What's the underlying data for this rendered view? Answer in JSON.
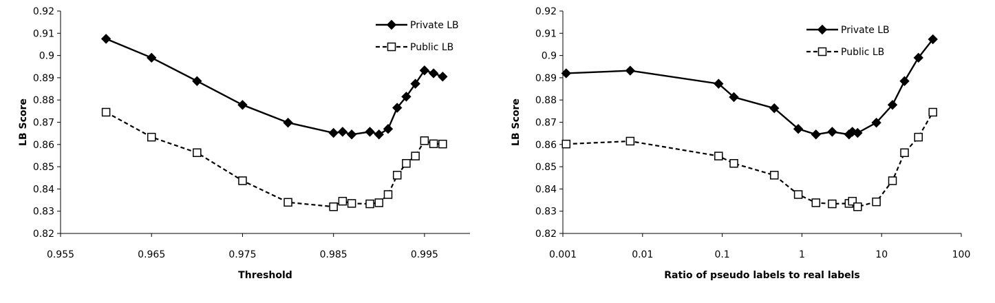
{
  "chart_data": [
    {
      "type": "line",
      "x_scale": "linear",
      "xlabel": "Threshold",
      "ylabel": "LB Score",
      "xlim": [
        0.955,
        1.0
      ],
      "ylim": [
        0.82,
        0.92
      ],
      "x_tick_values": [
        0.955,
        0.965,
        0.975,
        0.985,
        0.995
      ],
      "x_ticks": [
        "0.955",
        "0.965",
        "0.975",
        "0.985",
        "0.995"
      ],
      "y_ticks": [
        "0.82",
        "0.83",
        "0.84",
        "0.85",
        "0.86",
        "0.87",
        "0.88",
        "0.89",
        "0.9",
        "0.91",
        "0.92"
      ],
      "grid": false,
      "legend_position": "top-right",
      "series": [
        {
          "name": "Private LB",
          "marker": "diamond",
          "line_style": "solid",
          "color": "#000000",
          "x": [
            0.96,
            0.965,
            0.97,
            0.975,
            0.98,
            0.985,
            0.986,
            0.987,
            0.989,
            0.99,
            0.991,
            0.992,
            0.993,
            0.994,
            0.995,
            0.996,
            0.997
          ],
          "y": [
            0.9075,
            0.899,
            0.8885,
            0.8778,
            0.8698,
            0.8652,
            0.8657,
            0.8645,
            0.8657,
            0.8645,
            0.867,
            0.8765,
            0.8815,
            0.8873,
            0.8933,
            0.892,
            0.8905
          ]
        },
        {
          "name": "Public LB",
          "marker": "square-open",
          "line_style": "dashed",
          "color": "#000000",
          "x": [
            0.96,
            0.965,
            0.97,
            0.975,
            0.98,
            0.985,
            0.986,
            0.987,
            0.989,
            0.99,
            0.991,
            0.992,
            0.993,
            0.994,
            0.995,
            0.996,
            0.997
          ],
          "y": [
            0.8745,
            0.8633,
            0.8563,
            0.8437,
            0.834,
            0.832,
            0.8345,
            0.8335,
            0.8333,
            0.8338,
            0.8375,
            0.8462,
            0.8515,
            0.8548,
            0.8617,
            0.8603,
            0.8602
          ]
        }
      ]
    },
    {
      "type": "line",
      "x_scale": "log",
      "xlabel": "Ratio of pseudo labels to real labels",
      "ylabel": "LB Score",
      "xlim": [
        0.001,
        100
      ],
      "ylim": [
        0.82,
        0.92
      ],
      "x_tick_values": [
        0.001,
        0.01,
        0.1,
        1,
        10,
        100
      ],
      "x_ticks": [
        "0.001",
        "0.01",
        "0.1",
        "1",
        "10",
        "100"
      ],
      "y_ticks": [
        "0.82",
        "0.83",
        "0.84",
        "0.85",
        "0.86",
        "0.87",
        "0.88",
        "0.89",
        "0.9",
        "0.91",
        "0.92"
      ],
      "grid": false,
      "legend_position": "top-right",
      "series": [
        {
          "name": "Private LB",
          "marker": "diamond",
          "line_style": "solid",
          "color": "#000000",
          "x": [
            0.0011,
            0.007,
            0.09,
            0.14,
            0.45,
            0.9,
            1.5,
            2.4,
            3.9,
            4.3,
            5.0,
            8.6,
            13.7,
            19.4,
            29.0,
            44.0
          ],
          "y": [
            0.892,
            0.8932,
            0.8873,
            0.8813,
            0.8763,
            0.867,
            0.8645,
            0.8657,
            0.8645,
            0.8657,
            0.8652,
            0.8698,
            0.8778,
            0.8885,
            0.899,
            0.9073
          ]
        },
        {
          "name": "Public LB",
          "marker": "square-open",
          "line_style": "dashed",
          "color": "#000000",
          "x": [
            0.0011,
            0.007,
            0.09,
            0.14,
            0.45,
            0.9,
            1.5,
            2.4,
            3.9,
            4.3,
            5.0,
            8.6,
            13.7,
            19.4,
            29.0,
            44.0
          ],
          "y": [
            0.8602,
            0.8615,
            0.8548,
            0.8515,
            0.8462,
            0.8375,
            0.8338,
            0.8333,
            0.8335,
            0.8345,
            0.832,
            0.8342,
            0.8437,
            0.8563,
            0.8633,
            0.8745
          ]
        }
      ]
    }
  ]
}
